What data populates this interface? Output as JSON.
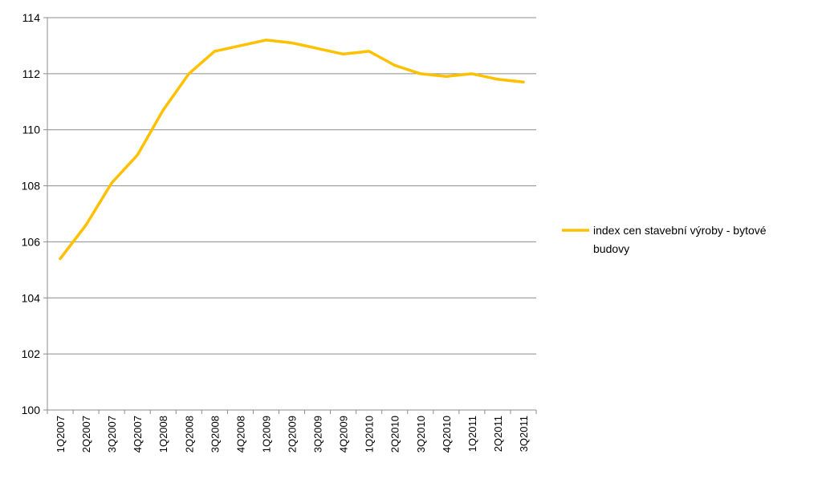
{
  "chart_data": {
    "type": "line",
    "categories": [
      "1Q2007",
      "2Q2007",
      "3Q2007",
      "4Q2007",
      "1Q2008",
      "2Q2008",
      "3Q2008",
      "4Q2008",
      "1Q2009",
      "2Q2009",
      "3Q2009",
      "4Q2009",
      "1Q2010",
      "2Q2010",
      "3Q2010",
      "4Q2010",
      "1Q2011",
      "2Q2011",
      "3Q2011"
    ],
    "series": [
      {
        "name": "index cen stavební výroby - bytové budovy",
        "values": [
          105.4,
          106.6,
          108.1,
          109.1,
          110.7,
          112.0,
          112.8,
          113.0,
          113.2,
          113.1,
          112.9,
          112.7,
          112.8,
          112.3,
          112.0,
          111.9,
          112.0,
          111.8,
          111.7
        ],
        "color": "#ffc000"
      }
    ],
    "ylim": [
      100,
      114
    ],
    "yticks": [
      "100",
      "102",
      "104",
      "106",
      "108",
      "110",
      "112",
      "114"
    ],
    "grid": true,
    "legend_position": "right",
    "legend_lines": [
      "index cen stavební výroby - bytové",
      "budovy"
    ]
  }
}
